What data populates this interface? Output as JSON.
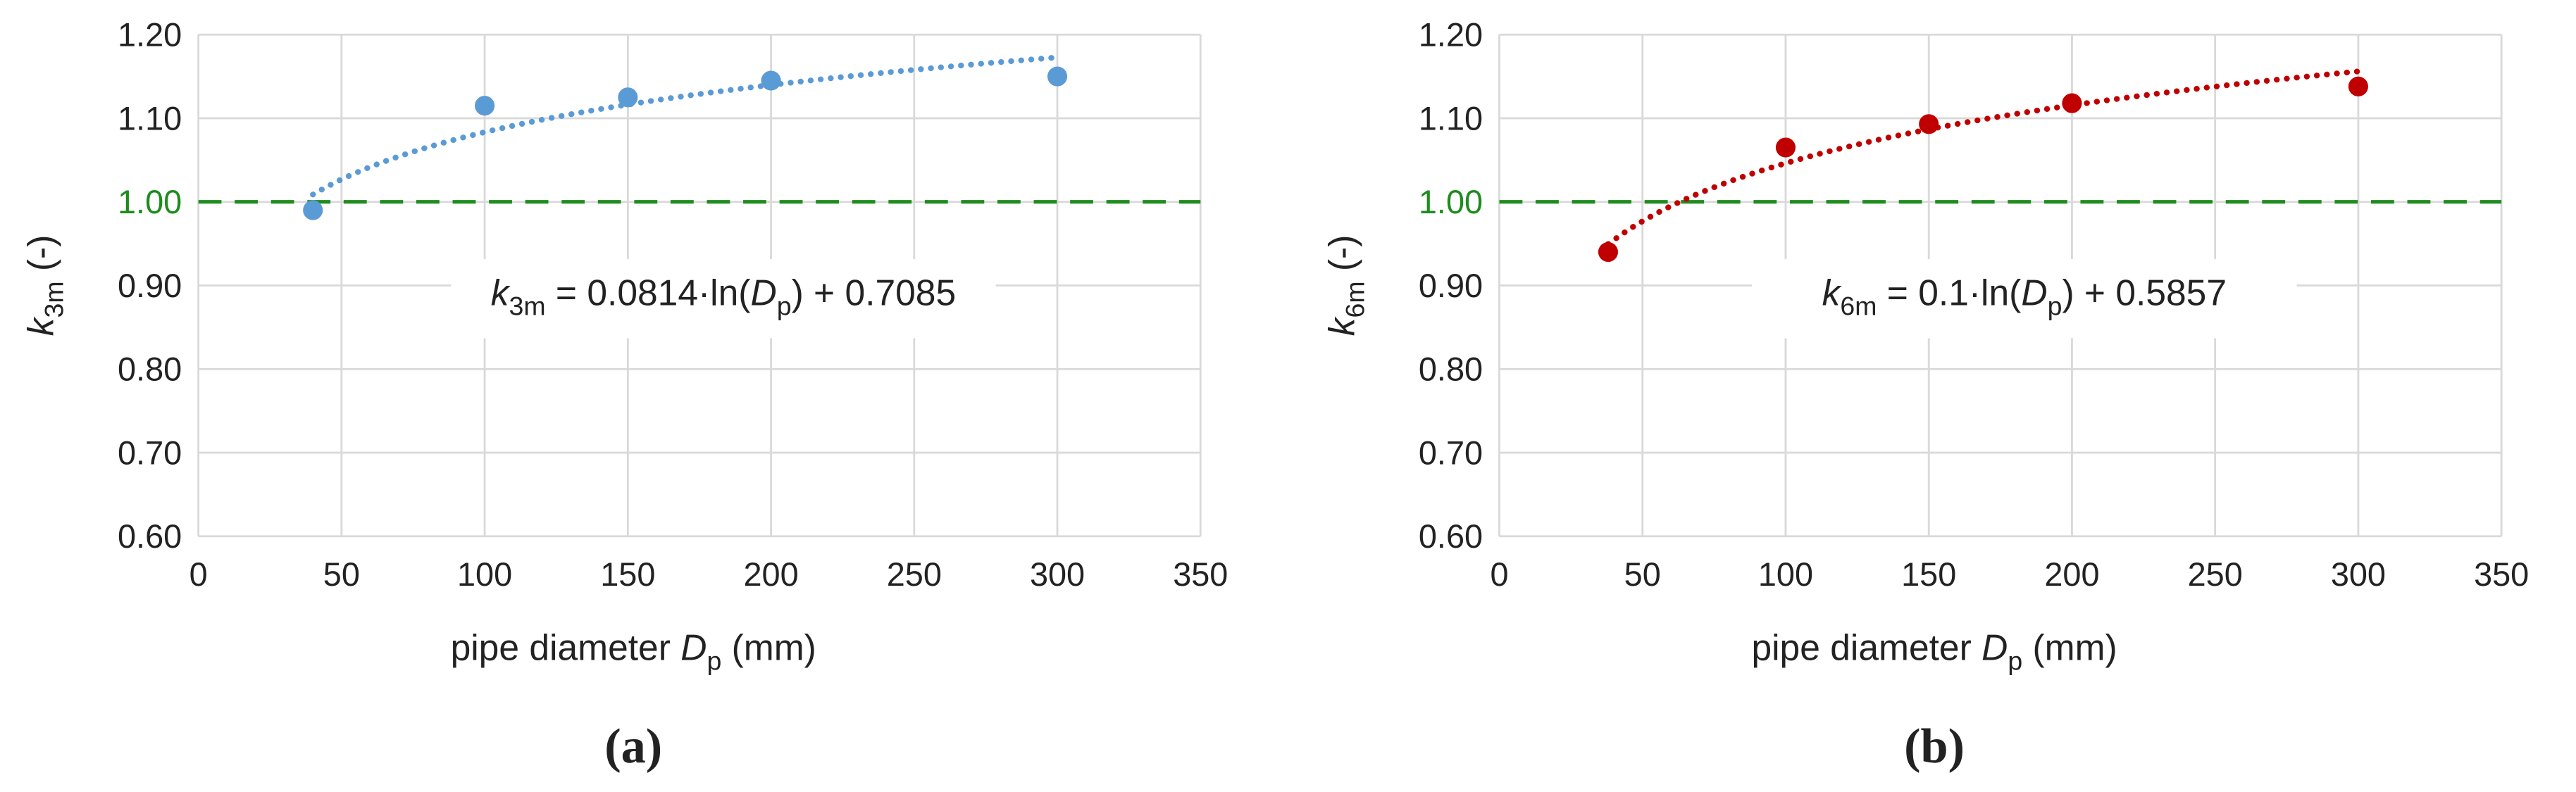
{
  "chart_data": [
    {
      "type": "scatter",
      "caption": "(a)",
      "y_label": [
        "k",
        "3m",
        " (-)"
      ],
      "x_label": [
        "pipe diameter ",
        "D",
        "p",
        " (mm)"
      ],
      "x": [
        40,
        100,
        150,
        200,
        300
      ],
      "series": [
        {
          "color": "#5b9bd5",
          "values": [
            0.99,
            1.115,
            1.125,
            1.145,
            1.15
          ]
        }
      ],
      "trendline": {
        "slope": 0.0814,
        "intercept": 0.7085
      },
      "equation": [
        "k",
        "3m",
        " = ",
        "·ln(",
        "D",
        "p",
        ") + "
      ],
      "reference_line": 1,
      "reference_color": "#1e8c1e",
      "xlim": [
        0,
        350
      ],
      "xticks": [
        0,
        50,
        100,
        150,
        200,
        250,
        300,
        350
      ],
      "ylim": [
        0.6,
        1.2
      ],
      "yticks": [
        {
          "value": 0.6,
          "label": "0.60"
        },
        {
          "value": 0.7,
          "label": "0.70"
        },
        {
          "value": 0.8,
          "label": "0.80"
        },
        {
          "value": 0.9,
          "label": "0.90"
        },
        {
          "value": 1,
          "label": "1.00"
        },
        {
          "value": 1.1,
          "label": "1.10"
        },
        {
          "value": 1.2,
          "label": "1.20"
        }
      ],
      "grid": true
    },
    {
      "type": "scatter",
      "caption": "(b)",
      "y_label": [
        "k",
        "6m",
        " (-)"
      ],
      "x_label": [
        "pipe diameter ",
        "D",
        "p",
        " (mm)"
      ],
      "x": [
        38,
        100,
        150,
        200,
        300
      ],
      "series": [
        {
          "color": "#c00000",
          "values": [
            0.94,
            1.065,
            1.093,
            1.118,
            1.138
          ]
        }
      ],
      "trendline": {
        "slope": 0.1,
        "intercept": 0.5857
      },
      "equation": [
        "k",
        "6m",
        " = ",
        "·ln(",
        "D",
        "p",
        ") + "
      ],
      "reference_line": 1,
      "reference_color": "#1e8c1e",
      "xlim": [
        0,
        350
      ],
      "xticks": [
        0,
        50,
        100,
        150,
        200,
        250,
        300,
        350
      ],
      "ylim": [
        0.6,
        1.2
      ],
      "yticks": [
        {
          "value": 0.6,
          "label": "0.60"
        },
        {
          "value": 0.7,
          "label": "0.70"
        },
        {
          "value": 0.8,
          "label": "0.80"
        },
        {
          "value": 0.9,
          "label": "0.90"
        },
        {
          "value": 1,
          "label": "1.00"
        },
        {
          "value": 1.1,
          "label": "1.10"
        },
        {
          "value": 1.2,
          "label": "1.20"
        }
      ],
      "grid": true
    }
  ]
}
